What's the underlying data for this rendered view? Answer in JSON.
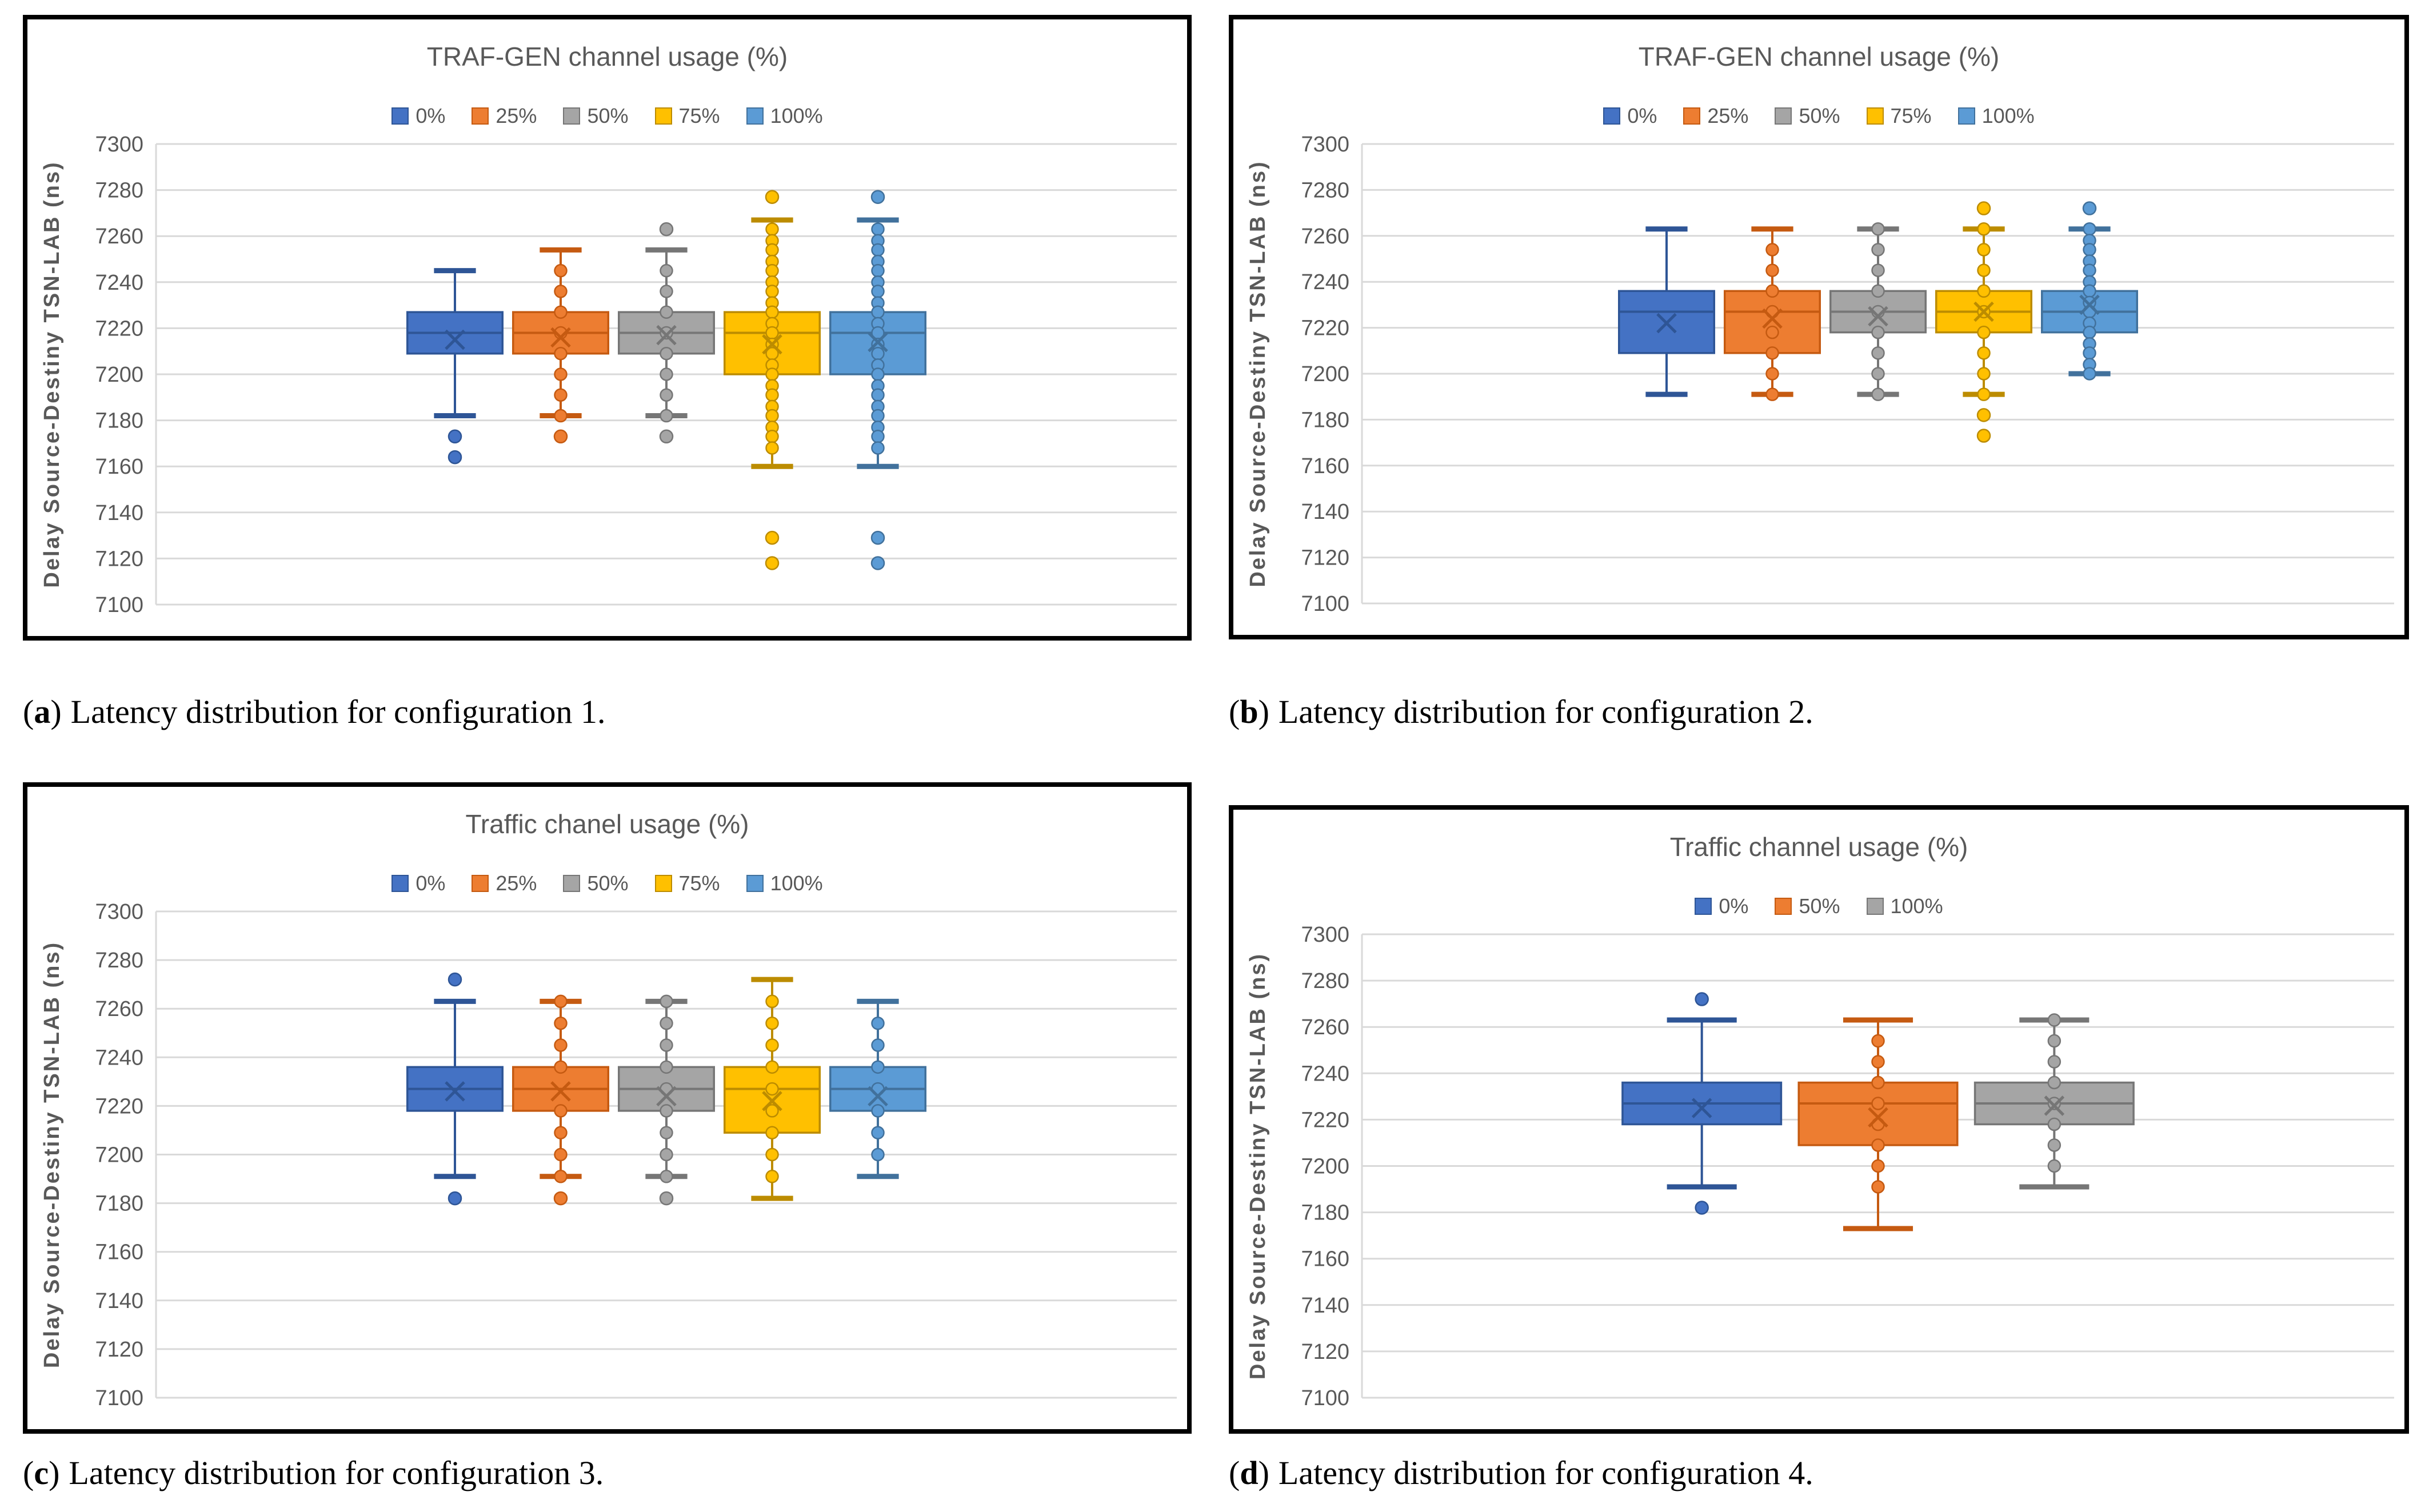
{
  "figure": {
    "background": "#ffffff",
    "text_color": "#595959",
    "gridline_color": "#D9D9D9"
  },
  "chart_data": [
    {
      "type": "boxplot",
      "panel": "a",
      "title": "TRAF-GEN channel usage (%)",
      "ylabel": "Delay Source-Destiny TSN-LAB (ns)",
      "xlabel": "",
      "ylim": [
        7100,
        7300
      ],
      "ytick_step": 20,
      "grid": true,
      "legend_position": "top",
      "categories": [
        "0%",
        "25%",
        "50%",
        "75%",
        "100%"
      ],
      "caption_letter": "a",
      "caption_text": "Latency distribution for configuration 1.",
      "series": [
        {
          "name": "0%",
          "color": "#4472C4",
          "edge": "#2E5596",
          "q1": 7209,
          "median": 7218,
          "q3": 7227,
          "mean": 7215,
          "whisker_low": 7182,
          "whisker_high": 7245,
          "outliers": [
            7173,
            7164
          ],
          "points": []
        },
        {
          "name": "25%",
          "color": "#ED7D31",
          "edge": "#C55A11",
          "q1": 7209,
          "median": 7218,
          "q3": 7227,
          "mean": 7216,
          "whisker_low": 7182,
          "whisker_high": 7254,
          "outliers": [
            7173
          ],
          "points": [
            7245,
            7236,
            7227,
            7218,
            7209,
            7200,
            7191,
            7182
          ]
        },
        {
          "name": "50%",
          "color": "#A5A5A5",
          "edge": "#767676",
          "q1": 7209,
          "median": 7218,
          "q3": 7227,
          "mean": 7217,
          "whisker_low": 7182,
          "whisker_high": 7254,
          "outliers": [
            7263,
            7173
          ],
          "points": [
            7245,
            7236,
            7227,
            7218,
            7209,
            7200,
            7191,
            7182
          ]
        },
        {
          "name": "75%",
          "color": "#FFC000",
          "edge": "#BC8C00",
          "q1": 7200,
          "median": 7218,
          "q3": 7227,
          "mean": 7213,
          "whisker_low": 7160,
          "whisker_high": 7267,
          "outliers": [
            7277,
            7129,
            7118
          ],
          "points": [
            7263,
            7258,
            7254,
            7249,
            7245,
            7240,
            7236,
            7231,
            7227,
            7222,
            7218,
            7213,
            7209,
            7204,
            7200,
            7195,
            7191,
            7186,
            7182,
            7177,
            7173,
            7168
          ]
        },
        {
          "name": "100%",
          "color": "#5B9BD5",
          "edge": "#41719C",
          "q1": 7200,
          "median": 7218,
          "q3": 7227,
          "mean": 7214,
          "whisker_low": 7160,
          "whisker_high": 7267,
          "outliers": [
            7277,
            7129,
            7118
          ],
          "points": [
            7263,
            7258,
            7254,
            7249,
            7245,
            7240,
            7236,
            7231,
            7227,
            7222,
            7218,
            7213,
            7209,
            7204,
            7200,
            7195,
            7191,
            7186,
            7182,
            7177,
            7173,
            7168
          ]
        }
      ]
    },
    {
      "type": "boxplot",
      "panel": "b",
      "title": "TRAF-GEN channel usage (%)",
      "ylabel": "Delay Source-Destiny TSN-LAB (ns)",
      "xlabel": "",
      "ylim": [
        7100,
        7300
      ],
      "ytick_step": 20,
      "grid": true,
      "legend_position": "top",
      "categories": [
        "0%",
        "25%",
        "50%",
        "75%",
        "100%"
      ],
      "caption_letter": "b",
      "caption_text": "Latency distribution for configuration 2.",
      "series": [
        {
          "name": "0%",
          "color": "#4472C4",
          "edge": "#2E5596",
          "q1": 7209,
          "median": 7227,
          "q3": 7236,
          "mean": 7222,
          "whisker_low": 7191,
          "whisker_high": 7263,
          "outliers": [],
          "points": []
        },
        {
          "name": "25%",
          "color": "#ED7D31",
          "edge": "#C55A11",
          "q1": 7209,
          "median": 7227,
          "q3": 7236,
          "mean": 7224,
          "whisker_low": 7191,
          "whisker_high": 7263,
          "outliers": [],
          "points": [
            7254,
            7245,
            7236,
            7227,
            7218,
            7209,
            7200,
            7191
          ]
        },
        {
          "name": "50%",
          "color": "#A5A5A5",
          "edge": "#767676",
          "q1": 7218,
          "median": 7227,
          "q3": 7236,
          "mean": 7225,
          "whisker_low": 7191,
          "whisker_high": 7263,
          "outliers": [],
          "points": [
            7263,
            7254,
            7245,
            7236,
            7227,
            7218,
            7209,
            7200,
            7191
          ]
        },
        {
          "name": "75%",
          "color": "#FFC000",
          "edge": "#BC8C00",
          "q1": 7218,
          "median": 7227,
          "q3": 7236,
          "mean": 7227,
          "whisker_low": 7191,
          "whisker_high": 7263,
          "outliers": [
            7272,
            7182,
            7173
          ],
          "points": [
            7263,
            7254,
            7245,
            7236,
            7227,
            7218,
            7209,
            7200,
            7191
          ]
        },
        {
          "name": "100%",
          "color": "#5B9BD5",
          "edge": "#41719C",
          "q1": 7218,
          "median": 7227,
          "q3": 7236,
          "mean": 7230,
          "whisker_low": 7200,
          "whisker_high": 7263,
          "outliers": [
            7272
          ],
          "points": [
            7263,
            7258,
            7254,
            7249,
            7245,
            7240,
            7236,
            7231,
            7227,
            7222,
            7218,
            7213,
            7209,
            7204,
            7200
          ]
        }
      ]
    },
    {
      "type": "boxplot",
      "panel": "c",
      "title": "Traffic chanel usage (%)",
      "ylabel": "Delay Source-Destiny TSN-LAB (ns)",
      "xlabel": "",
      "ylim": [
        7100,
        7300
      ],
      "ytick_step": 20,
      "grid": true,
      "legend_position": "top",
      "categories": [
        "0%",
        "25%",
        "50%",
        "75%",
        "100%"
      ],
      "caption_letter": "c",
      "caption_text": "Latency distribution for configuration 3.",
      "series": [
        {
          "name": "0%",
          "color": "#4472C4",
          "edge": "#2E5596",
          "q1": 7218,
          "median": 7227,
          "q3": 7236,
          "mean": 7226,
          "whisker_low": 7191,
          "whisker_high": 7263,
          "outliers": [
            7272,
            7182
          ],
          "points": []
        },
        {
          "name": "25%",
          "color": "#ED7D31",
          "edge": "#C55A11",
          "q1": 7218,
          "median": 7227,
          "q3": 7236,
          "mean": 7226,
          "whisker_low": 7191,
          "whisker_high": 7263,
          "outliers": [
            7182
          ],
          "points": [
            7263,
            7254,
            7245,
            7236,
            7218,
            7209,
            7200,
            7191
          ]
        },
        {
          "name": "50%",
          "color": "#A5A5A5",
          "edge": "#767676",
          "q1": 7218,
          "median": 7227,
          "q3": 7236,
          "mean": 7224,
          "whisker_low": 7191,
          "whisker_high": 7263,
          "outliers": [
            7182
          ],
          "points": [
            7263,
            7254,
            7245,
            7236,
            7227,
            7218,
            7209,
            7200,
            7191
          ]
        },
        {
          "name": "75%",
          "color": "#FFC000",
          "edge": "#BC8C00",
          "q1": 7209,
          "median": 7227,
          "q3": 7236,
          "mean": 7222,
          "whisker_low": 7182,
          "whisker_high": 7272,
          "outliers": [],
          "points": [
            7263,
            7254,
            7245,
            7236,
            7227,
            7218,
            7209,
            7200,
            7191
          ]
        },
        {
          "name": "100%",
          "color": "#5B9BD5",
          "edge": "#41719C",
          "q1": 7218,
          "median": 7227,
          "q3": 7236,
          "mean": 7224,
          "whisker_low": 7191,
          "whisker_high": 7263,
          "outliers": [],
          "points": [
            7254,
            7245,
            7236,
            7227,
            7218,
            7209,
            7200
          ]
        }
      ]
    },
    {
      "type": "boxplot",
      "panel": "d",
      "title": "Traffic channel usage (%)",
      "ylabel": "Delay Source-Destiny TSN-LAB (ns)",
      "xlabel": "",
      "ylim": [
        7100,
        7300
      ],
      "ytick_step": 20,
      "grid": true,
      "legend_position": "top",
      "categories": [
        "0%",
        "50%",
        "100%"
      ],
      "caption_letter": "d",
      "caption_text": "Latency distribution for configuration 4.",
      "series": [
        {
          "name": "0%",
          "color": "#4472C4",
          "edge": "#2E5596",
          "q1": 7218,
          "median": 7227,
          "q3": 7236,
          "mean": 7225,
          "whisker_low": 7191,
          "whisker_high": 7263,
          "outliers": [
            7272,
            7182
          ],
          "points": []
        },
        {
          "name": "50%",
          "color": "#ED7D31",
          "edge": "#C55A11",
          "q1": 7209,
          "median": 7227,
          "q3": 7236,
          "mean": 7221,
          "whisker_low": 7173,
          "whisker_high": 7263,
          "outliers": [],
          "points": [
            7254,
            7245,
            7236,
            7227,
            7218,
            7209,
            7200,
            7191
          ]
        },
        {
          "name": "100%",
          "color": "#A5A5A5",
          "edge": "#767676",
          "q1": 7218,
          "median": 7227,
          "q3": 7236,
          "mean": 7226,
          "whisker_low": 7191,
          "whisker_high": 7263,
          "outliers": [],
          "points": [
            7263,
            7254,
            7245,
            7236,
            7227,
            7218,
            7209,
            7200
          ]
        }
      ]
    }
  ]
}
